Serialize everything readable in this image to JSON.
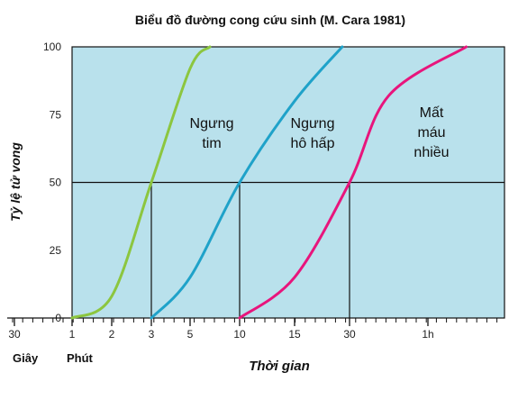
{
  "chart_data": {
    "type": "line",
    "title": "Biểu đồ đường cong cứu sinh (M. Cara 1981)",
    "ylabel": "Tỷ lệ tử vong",
    "xlabel": "Thời gian",
    "unit_labels": [
      "Giây",
      "Phút"
    ],
    "y_ticks": [
      "100",
      "75",
      "50",
      "25",
      "0"
    ],
    "x_tick_labels": [
      "30",
      "1",
      "2",
      "3",
      "5",
      "10",
      "15",
      "30",
      "1h"
    ],
    "x_tick_minutes": [
      0.5,
      1,
      2,
      3,
      5,
      10,
      15,
      30,
      60
    ],
    "ylim": [
      0,
      100
    ],
    "x_scale": "time (log-like)",
    "grid": "y=50 horizontal line",
    "series": [
      {
        "name": "Ngưng tim",
        "label_lines": [
          "Ngưng",
          "tim"
        ],
        "color": "#8cc63f",
        "x": [
          1,
          2,
          3,
          5,
          7
        ],
        "y": [
          0,
          8,
          50,
          92,
          100
        ]
      },
      {
        "name": "Ngưng hô hấp",
        "label_lines": [
          "Ngưng",
          "hô hấp"
        ],
        "color": "#1fa2c9",
        "x": [
          3,
          5,
          10,
          15,
          28
        ],
        "y": [
          0,
          15,
          50,
          80,
          100
        ]
      },
      {
        "name": "Mất máu nhiều",
        "label_lines": [
          "Mất",
          "máu",
          "nhiều"
        ],
        "color": "#e8157c",
        "x": [
          10,
          15,
          30,
          45,
          90
        ],
        "y": [
          0,
          15,
          50,
          82,
          100
        ]
      }
    ],
    "crosshair_x": [
      3,
      10,
      30
    ],
    "colors": {
      "plot_bg": "#b9e1ec",
      "axis": "#111111"
    }
  }
}
